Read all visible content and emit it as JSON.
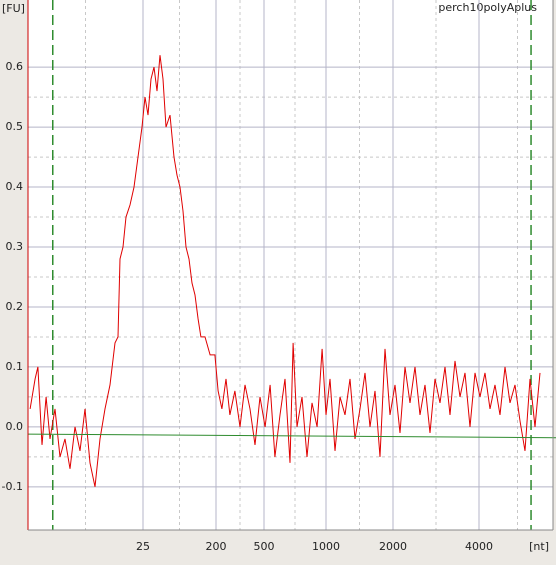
{
  "chart_data": {
    "type": "line",
    "title": "perch10polyAplus",
    "ylabel": "[FU]",
    "xlabel": "[nt]",
    "xlim": [
      1,
      7450
    ],
    "xticks": [
      25,
      200,
      500,
      1000,
      2000,
      4000
    ],
    "ylim": [
      -0.172,
      0.712
    ],
    "yticks": [
      -0.1,
      {
        "value": 0,
        "label": "0.0"
      },
      0.1,
      0.2,
      0.3,
      0.4,
      0.5,
      0.6
    ],
    "grid": true,
    "markers": [
      2,
      6090
    ],
    "marker_color": "#2e8b2e",
    "series": [
      {
        "color": "#e00000",
        "x": [
          1.06,
          1.22,
          1.32,
          1.48,
          1.66,
          1.85,
          2.13,
          2.45,
          2.82,
          3.24,
          3.73,
          4.29,
          4.93,
          5.67,
          6.52,
          7.5,
          8.63,
          9.93,
          11.42,
          12.42,
          13.13,
          14.28,
          15.54,
          17.37,
          19.44,
          21.74,
          24.31,
          26.47,
          28.83,
          31.4,
          34.2,
          37.25,
          40.6,
          44.2,
          48.1,
          54,
          60.4,
          65.8,
          71.7,
          78.1,
          85.1,
          92.7,
          101,
          110,
          120,
          130,
          146,
          169,
          194,
          208,
          224,
          242,
          261,
          287,
          316,
          348,
          383,
          421,
          463,
          506,
          535,
          565,
          598,
          632,
          669,
          692,
          723,
          765,
          809,
          855,
          905,
          957,
          1000,
          1042,
          1098,
          1156,
          1217,
          1282,
          1350,
          1422,
          1497,
          1577,
          1660,
          1748,
          1841,
          1939,
          2033,
          2116,
          2203,
          2294,
          2388,
          2486,
          2588,
          2695,
          2806,
          2921,
          3041,
          3166,
          3296,
          3432,
          3573,
          3720,
          3873,
          4032,
          4199,
          4372,
          4552,
          4740,
          4935,
          5139,
          5350,
          5571,
          5801,
          6039,
          6288,
          6547
        ],
        "values": [
          0.03,
          0.08,
          0.1,
          -0.03,
          0.05,
          -0.02,
          0.03,
          -0.05,
          -0.02,
          -0.07,
          0.0,
          -0.04,
          0.03,
          -0.06,
          -0.1,
          -0.02,
          0.03,
          0.07,
          0.14,
          0.15,
          0.28,
          0.3,
          0.35,
          0.37,
          0.4,
          0.45,
          0.5,
          0.55,
          0.52,
          0.58,
          0.6,
          0.56,
          0.62,
          0.58,
          0.5,
          0.52,
          0.45,
          0.42,
          0.4,
          0.36,
          0.3,
          0.28,
          0.24,
          0.22,
          0.18,
          0.15,
          0.15,
          0.12,
          0.12,
          0.06,
          0.03,
          0.08,
          0.02,
          0.06,
          0.0,
          0.07,
          0.03,
          -0.03,
          0.05,
          0.0,
          0.07,
          -0.05,
          0.02,
          0.08,
          -0.06,
          0.14,
          0.0,
          0.05,
          -0.05,
          0.04,
          0.0,
          0.13,
          0.02,
          0.08,
          -0.04,
          0.05,
          0.02,
          0.08,
          -0.02,
          0.03,
          0.09,
          0.0,
          0.06,
          -0.05,
          0.13,
          0.02,
          0.07,
          -0.01,
          0.1,
          0.04,
          0.1,
          0.02,
          0.07,
          -0.01,
          0.08,
          0.04,
          0.1,
          0.02,
          0.11,
          0.05,
          0.09,
          0.0,
          0.09,
          0.05,
          0.09,
          0.03,
          0.07,
          0.02,
          0.1,
          0.04,
          0.07,
          0.01,
          -0.04,
          0.08,
          0.0,
          0.09
        ]
      },
      {
        "color": "#2e8b2e",
        "x": [
          1,
          7450
        ],
        "values": [
          -0.012,
          -0.018
        ]
      }
    ]
  }
}
